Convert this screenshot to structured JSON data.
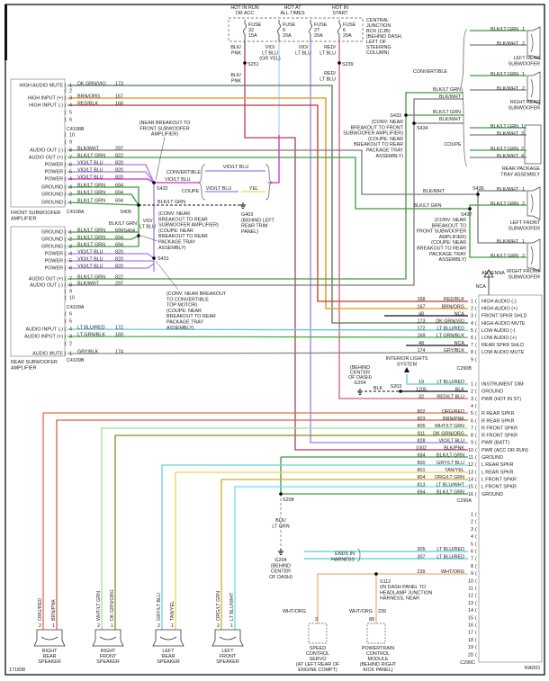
{
  "figure_id": "171838",
  "cjb": {
    "hot_run_acc": [
      "HOT IN RUN",
      "OR ACC"
    ],
    "hot_all_times": [
      "HOT AT",
      "ALL TIMES"
    ],
    "hot_start": [
      "HOT IN",
      "START"
    ],
    "fuses": [
      {
        "label": "FUSE",
        "number": "32",
        "rating": "15A"
      },
      {
        "label": "FUSE",
        "number": "9",
        "rating": "20A"
      },
      {
        "label": "FUSE",
        "number": "27",
        "rating": "20A"
      },
      {
        "label": "FUSE",
        "number": "6",
        "rating": "20A"
      }
    ],
    "name": [
      "CENTRAL",
      "JUNCTION",
      "BOX (CJB)",
      "(BEHIND DASH,",
      "LEFT OF",
      "STEERING",
      "COLUMN)"
    ]
  },
  "top_wires": {
    "fuse32_a": [
      "BLK/",
      "PNK"
    ],
    "fuse32_b": [
      "BLK/",
      "PNK"
    ],
    "fuse9": [
      "VIO/",
      "LT BLU",
      "(OR YEL)"
    ],
    "fuse27": [
      "VIO/",
      "LT BLU"
    ],
    "fuse6_a": [
      "RED/",
      "LT BLU"
    ],
    "fuse6_b": [
      "RED/",
      "LT BLU"
    ]
  },
  "splices": {
    "s251": "S251",
    "s239": "S239",
    "s432": "S432",
    "s405": "S405",
    "s404": "S404",
    "s431": "S431",
    "s433": "S433",
    "s434": "S434",
    "s436": "S436",
    "s437": "S437",
    "s203": "S203",
    "s208": "S208",
    "s112": "S112"
  },
  "front_amp": {
    "name": [
      "FRONT SUBWOOFER",
      "AMPLIFIER"
    ],
    "connector_b": "C4108B",
    "connector_a": "C4108A",
    "rows": [
      {
        "pin": "1",
        "func": "HIGH AUDIO MUTE",
        "color": "DK GRN/VIO",
        "circuit": "173"
      },
      {
        "pin": "2",
        "func": "",
        "color": "",
        "circuit": ""
      },
      {
        "pin": "3",
        "func": "HIGH INPUT (+)",
        "color": "BRN/ORG",
        "circuit": "167"
      },
      {
        "pin": "4",
        "func": "HIGH INPUT (-)",
        "color": "RED/BLK",
        "circuit": "168"
      },
      {
        "pin": "5",
        "func": "",
        "color": "",
        "circuit": ""
      },
      {
        "pin": "6",
        "func": "",
        "color": "",
        "circuit": ""
      },
      {
        "pin": "10",
        "func": "",
        "color": "",
        "circuit": ""
      },
      {
        "pin": "9",
        "func": "",
        "color": "",
        "circuit": ""
      },
      {
        "pin": "8",
        "func": "AUDIO OUT (-)",
        "color": "BLK/WHT",
        "circuit": "297"
      },
      {
        "pin": "7",
        "func": "AUDIO OUT (+)",
        "color": "BLK/LT GRN",
        "circuit": "822"
      },
      {
        "pin": "6",
        "func": "POWER",
        "color": "VIO/LT BLU",
        "circuit": "820"
      },
      {
        "pin": "5",
        "func": "POWER",
        "color": "VIO/LT BLU",
        "circuit": "820"
      },
      {
        "pin": "4",
        "func": "POWER",
        "color": "VIO/LT BLU",
        "circuit": "820"
      },
      {
        "pin": "3",
        "func": "GROUND",
        "color": "BLK/LT GRN",
        "circuit": "694"
      },
      {
        "pin": "2",
        "func": "GROUND",
        "color": "BLK/LT GRN",
        "circuit": "694"
      },
      {
        "pin": "1",
        "func": "GROUND",
        "color": "BLK/LT GRN",
        "circuit": "694"
      }
    ]
  },
  "rear_amp": {
    "name": [
      "REAR SUBWOOFER",
      "AMPLIFIER"
    ],
    "connector_a": "C4109A",
    "connector_b": "C4109B",
    "rows": [
      {
        "pin": "1",
        "func": "GROUND",
        "color": "BLK/LT GRN",
        "circuit": "694"
      },
      {
        "pin": "2",
        "func": "GROUND",
        "color": "BLK/LT GRN",
        "circuit": "694"
      },
      {
        "pin": "3",
        "func": "GROUND",
        "color": "BLK/LT GRN",
        "circuit": "694"
      },
      {
        "pin": "4",
        "func": "POWER",
        "color": "VIO/LT BLU",
        "circuit": "820"
      },
      {
        "pin": "5",
        "func": "POWER",
        "color": "VIO/LT BLU",
        "circuit": "820"
      },
      {
        "pin": "6",
        "func": "POWER",
        "color": "VIO/LT BLU",
        "circuit": "820"
      },
      {
        "pin": "7",
        "func": "AUDIO OUT (+)",
        "color": "BLK/LT GRN",
        "circuit": "822"
      },
      {
        "pin": "8",
        "func": "AUDIO OUT (-)",
        "color": "BLK/WHT",
        "circuit": "297"
      },
      {
        "pin": "9",
        "func": "",
        "color": "",
        "circuit": ""
      },
      {
        "pin": "10",
        "func": "",
        "color": "",
        "circuit": ""
      },
      {
        "pin": "6",
        "func": "",
        "color": "",
        "circuit": ""
      },
      {
        "pin": "5",
        "func": "",
        "color": "",
        "circuit": ""
      },
      {
        "pin": "4",
        "func": "AUDIO INPUT (-)",
        "color": "LT BLU/RED",
        "circuit": "172"
      },
      {
        "pin": "3",
        "func": "AUDIO INPUT (+)",
        "color": "LT GRN/BLK",
        "circuit": "169"
      },
      {
        "pin": "2",
        "func": "",
        "color": "",
        "circuit": ""
      },
      {
        "pin": "1",
        "func": "AUDIO MUTE",
        "color": "GRY/BLK",
        "circuit": "174"
      }
    ]
  },
  "left_notes": {
    "near_front_amp": [
      "(NEAR BREAKOUT TO",
      "FRONT SUBWOOFER",
      "AMPLIFIER)"
    ],
    "convertible": "CONVERTIBLE",
    "coupe": "COUPE",
    "s432_wire": "VIO/LT BLU",
    "conv_wire": "VIO/LT BLU",
    "coupe_wire": "VIO/LT BLU",
    "coupe_yel": "YEL",
    "ground_wire": "BLK/LT GRN",
    "s404_wire": "BLK/LT GRN",
    "vertical_wire": [
      "VIO/",
      "LT BLU"
    ],
    "g403": [
      "G403",
      "(BEHIND LEFT",
      "REAR TRIM",
      "PANEL)"
    ],
    "s405_note": [
      "(CONV: NEAR",
      "BREAKOUT TO REAR",
      "SUBWOOFER AMPLIFIER)",
      "(COUPE: NEAR",
      "BREAKOUT TO REAR",
      "PACKAGE TRAY",
      "ASSEMBLY)"
    ],
    "s431_note": [
      "(CONV: NEAR BREAKOUT",
      "TO CONVERTIBLE",
      "TOP MOTOR)",
      "(COUPE: NEAR",
      "BREAKOUT TO REAR",
      "PACKAGE TRAY",
      "ASSEMBLY)"
    ]
  },
  "right_side": {
    "convertible": "CONVERTIBLE",
    "coupe": "COUPE",
    "s433_wires": [
      "BLK/LT GRN",
      "BLK/WHT",
      "BLK/LT GRN",
      "BLK/WHT"
    ],
    "s433_note": [
      "(CONV: NEAR",
      "BREAKOUT TO FRONT",
      "SUBWOOFER AMPLIFIER)",
      "(COUPE: NEAR",
      "BREAKOUT TO REAR",
      "PACKAGE TRAY",
      "ASSEMBLY)"
    ],
    "s436_wire": "BLK/WHT",
    "s437_wire": "BLK/LT GRN",
    "s437_note": [
      "(CONV: NEAR",
      "BREAKOUT TO",
      "FRONT SUBWOOFER",
      "AMPLIFIER)",
      "(COUPE: NEAR",
      "BREAKOUT TO REAR",
      "PACKAGE TRAY",
      "ASSEMBLY)"
    ],
    "subs": [
      {
        "name": [
          "LEFT REAR",
          "SUBWOOFER"
        ],
        "pins": [
          {
            "color": "BLK/LT GRN",
            "pin": "1"
          },
          {
            "color": "BLK/WHT",
            "pin": "2"
          }
        ]
      },
      {
        "name": [
          "RIGHT REAR",
          "SUBWOOFER"
        ],
        "pins": [
          {
            "color": "BLK/LT GRN",
            "pin": "1"
          },
          {
            "color": "BLK/WHT",
            "pin": "2"
          }
        ]
      },
      {
        "name": [
          "LEFT FRONT",
          "SUBWOOFER"
        ],
        "pins": [
          {
            "color": "BLK/WHT",
            "pin": "1"
          },
          {
            "color": "BLK/LT GRN",
            "pin": "2"
          }
        ]
      },
      {
        "name": [
          "RIGHT FRONT",
          "SUBWOOFER"
        ],
        "pins": [
          {
            "color": "BLK/WHT",
            "pin": "1"
          },
          {
            "color": "BLK/LT GRN",
            "pin": "2"
          }
        ]
      }
    ],
    "tray": {
      "name": [
        "REAR PACKAGE",
        "TRAY ASSEMBLY"
      ],
      "pins": [
        {
          "color": "BLK/LT GRN",
          "pin": "1"
        },
        {
          "color": "BLK/WHT",
          "pin": "3"
        },
        {
          "color": "BLK/LT GRN",
          "pin": "2"
        },
        {
          "color": "BLK/WHT",
          "pin": "4"
        }
      ]
    },
    "antenna": "ANTENNA",
    "antenna_nca": "NCA"
  },
  "radio": {
    "name": "RADIO",
    "c290b": {
      "label": "C290B",
      "rows": [
        {
          "pin": "1",
          "func": "HIGH AUDIO (-)",
          "color": "RED/BLK",
          "circuit": "168"
        },
        {
          "pin": "2",
          "func": "HIGH AUDIO (+)",
          "color": "BRN/ORG",
          "circuit": "167"
        },
        {
          "pin": "3",
          "func": "FRONT SPKR SHLD",
          "color": "NCA",
          "circuit": "48"
        },
        {
          "pin": "4",
          "func": "HIGH AUDIO MUTE",
          "color": "DK GRN/VIO",
          "circuit": "173"
        },
        {
          "pin": "5",
          "func": "LOW AUDIO (-)",
          "color": "LT BLU/RED",
          "circuit": "172"
        },
        {
          "pin": "6",
          "func": "LOW AUDIO (+)",
          "color": "LT GRN/BLK",
          "circuit": "169"
        },
        {
          "pin": "7",
          "func": "REAR SPKR SHLD",
          "color": "NCA",
          "circuit": "48"
        },
        {
          "pin": "8",
          "func": "LOW AUDIO MUTE",
          "color": "GRY/BLK",
          "circuit": "174"
        },
        {
          "pin": "9",
          "func": "",
          "color": "",
          "circuit": ""
        }
      ]
    },
    "c290a": {
      "label": "C290A",
      "rows": [
        {
          "pin": "1",
          "func": "INSTRUMENT DIM",
          "color": "LT BLU/RED",
          "circuit": "19"
        },
        {
          "pin": "2",
          "func": "GROUND",
          "color": "BLK",
          "circuit": "1205"
        },
        {
          "pin": "3",
          "func": "PWR (HOT IN ST)",
          "color": "RED/LT BLU",
          "circuit": "32"
        },
        {
          "pin": "4",
          "func": "",
          "color": "",
          "circuit": ""
        },
        {
          "pin": "5",
          "func": "R REAR SPKR",
          "color": "ORG/RED",
          "circuit": "802"
        },
        {
          "pin": "6",
          "func": "R REAR SPKR",
          "color": "BRN/PNK",
          "circuit": "803"
        },
        {
          "pin": "7",
          "func": "R FRONT SPKR",
          "color": "WHT/LT GRN",
          "circuit": "805"
        },
        {
          "pin": "8",
          "func": "R FRONT SPKR",
          "color": "DK GRN/ORG",
          "circuit": "811"
        },
        {
          "pin": "9",
          "func": "PWR (BATT)",
          "color": "VIO/LT BLU",
          "circuit": "828"
        },
        {
          "pin": "10",
          "func": "PWR (ACC OR RUN)",
          "color": "BLK/PNK",
          "circuit": "1002"
        },
        {
          "pin": "11",
          "func": "GROUND",
          "color": "BLK/LT GRN",
          "circuit": "694"
        },
        {
          "pin": "12",
          "func": "L REAR SPKR",
          "color": "GRY/LT BLU",
          "circuit": "800"
        },
        {
          "pin": "13",
          "func": "L REAR SPKR",
          "color": "TAN/YEL",
          "circuit": "801"
        },
        {
          "pin": "14",
          "func": "L FRONT SPKR",
          "color": "ORG/LT GRN",
          "circuit": "804"
        },
        {
          "pin": "15",
          "func": "L FRONT SPKR",
          "color": "LT BLU/WHT",
          "circuit": "813"
        },
        {
          "pin": "16",
          "func": "GROUND",
          "color": "BLK/LT GRN",
          "circuit": "694"
        }
      ]
    },
    "c290c": {
      "label": "C290C",
      "rows": [
        {
          "pin": "1",
          "color": "",
          "circuit": ""
        },
        {
          "pin": "2",
          "color": "",
          "circuit": ""
        },
        {
          "pin": "3",
          "color": "",
          "circuit": ""
        },
        {
          "pin": "4",
          "color": "",
          "circuit": ""
        },
        {
          "pin": "5",
          "color": "",
          "circuit": ""
        },
        {
          "pin": "6",
          "color": "LT BLU/RED",
          "circuit": "305"
        },
        {
          "pin": "7",
          "color": "LT BLU/RED",
          "circuit": "307"
        },
        {
          "pin": "8",
          "color": "",
          "circuit": ""
        },
        {
          "pin": "9",
          "color": "WHT/ORG",
          "circuit": "239"
        },
        {
          "pin": "10",
          "color": "",
          "circuit": ""
        },
        {
          "pin": "11",
          "color": "",
          "circuit": ""
        },
        {
          "pin": "12",
          "color": "",
          "circuit": ""
        },
        {
          "pin": "13",
          "color": "",
          "circuit": ""
        },
        {
          "pin": "14",
          "color": "",
          "circuit": ""
        },
        {
          "pin": "15",
          "color": "",
          "circuit": ""
        },
        {
          "pin": "16",
          "color": "",
          "circuit": ""
        },
        {
          "pin": "17",
          "color": "",
          "circuit": ""
        },
        {
          "pin": "18",
          "color": "",
          "circuit": ""
        },
        {
          "pin": "19",
          "color": "",
          "circuit": ""
        },
        {
          "pin": "20",
          "color": "",
          "circuit": ""
        }
      ]
    }
  },
  "center_notes": {
    "interior_lights": [
      "INTERIOR LIGHTS",
      "SYSTEM"
    ],
    "g204_top": [
      "(BEHIND",
      "CENTER",
      "OF DASH)",
      "G204"
    ],
    "blk": "BLK",
    "s208_wire": [
      "BLK/",
      "LT GRN"
    ],
    "g204_bottom": [
      "G204",
      "(BEHIND",
      "CENTER",
      "OF DASH)"
    ],
    "ends_in_harness": [
      "ENDS IN",
      "HARNESS"
    ],
    "s112_note": [
      "(IN DASH PANEL TO",
      "HEADLAMP JUNCTION",
      "HARNESS, NEAR"
    ],
    "speed_wire": "WHT/ORG",
    "speed_pin": "3",
    "pcm_wire": "WHT/ORG",
    "pcm_circuit": "239",
    "pcm_pin": "88",
    "speed_control": [
      "SPEED",
      "CONTROL",
      "SERVO",
      "(AT LEFT REAR OF",
      "ENGINE COMPT)"
    ],
    "pcm": [
      "POWERTRAIN",
      "CONTROL",
      "MODULE",
      "(BEHIND RIGHT",
      "KICK PANEL)"
    ]
  },
  "speakers": [
    {
      "name": [
        "RIGHT",
        "REAR",
        "SPEAKER"
      ],
      "pins": [
        {
          "pin": "2",
          "color": "ORG/RED"
        },
        {
          "pin": "1",
          "color": "BRN/PNK"
        }
      ]
    },
    {
      "name": [
        "RIGHT",
        "FRONT",
        "SPEAKER"
      ],
      "pins": [
        {
          "pin": "2",
          "color": "WHT/LT GRN"
        },
        {
          "pin": "1",
          "color": "DK GRN/ORG"
        }
      ]
    },
    {
      "name": [
        "LEFT",
        "REAR",
        "SPEAKER"
      ],
      "pins": [
        {
          "pin": "2",
          "color": "GRY/LT BLU"
        },
        {
          "pin": "1",
          "color": "TAN/YEL"
        }
      ]
    },
    {
      "name": [
        "LEFT",
        "FRONT",
        "SPEAKER"
      ],
      "pins": [
        {
          "pin": "2",
          "color": "ORG/LT GRN"
        },
        {
          "pin": "1",
          "color": "LT BLU/WHT"
        }
      ]
    }
  ],
  "wire_colors": {
    "DK GRN/VIO": "#4a7a52",
    "BRN/ORG": "#e8a33a",
    "RED/BLK": "#b83a2a",
    "BLK/WHT": "#7a7a7a",
    "BLK/LT GRN": "#3c9c3c",
    "VIO/LT BLU": "#a47ae8",
    "MAGENTA": "#d22ad2",
    "LT BLU/RED": "#5ac8d8",
    "LT GRN/BLK": "#44b044",
    "GRY/BLK": "#8a8a8a",
    "NCA": "#111111",
    "BLK": "#111111",
    "RED/LT BLU": "#d06070",
    "BLK/PNK": "#a84058",
    "ORG/RED": "#ec6a3c",
    "BRN/PNK": "#d2643c",
    "WHT/LT GRN": "#96e096",
    "DK GRN/ORG": "#8c8c14",
    "GRY/LT BLU": "#6cd0d4",
    "TAN/YEL": "#ead24a",
    "ORG/LT GRN": "#c8b228",
    "LT BLU/WHT": "#5ee0e8",
    "WHT/ORG": "#f0b070",
    "YEL": "#e8e040",
    "VIO/LT BLU (OR YEL)": "#a8d8f0"
  }
}
